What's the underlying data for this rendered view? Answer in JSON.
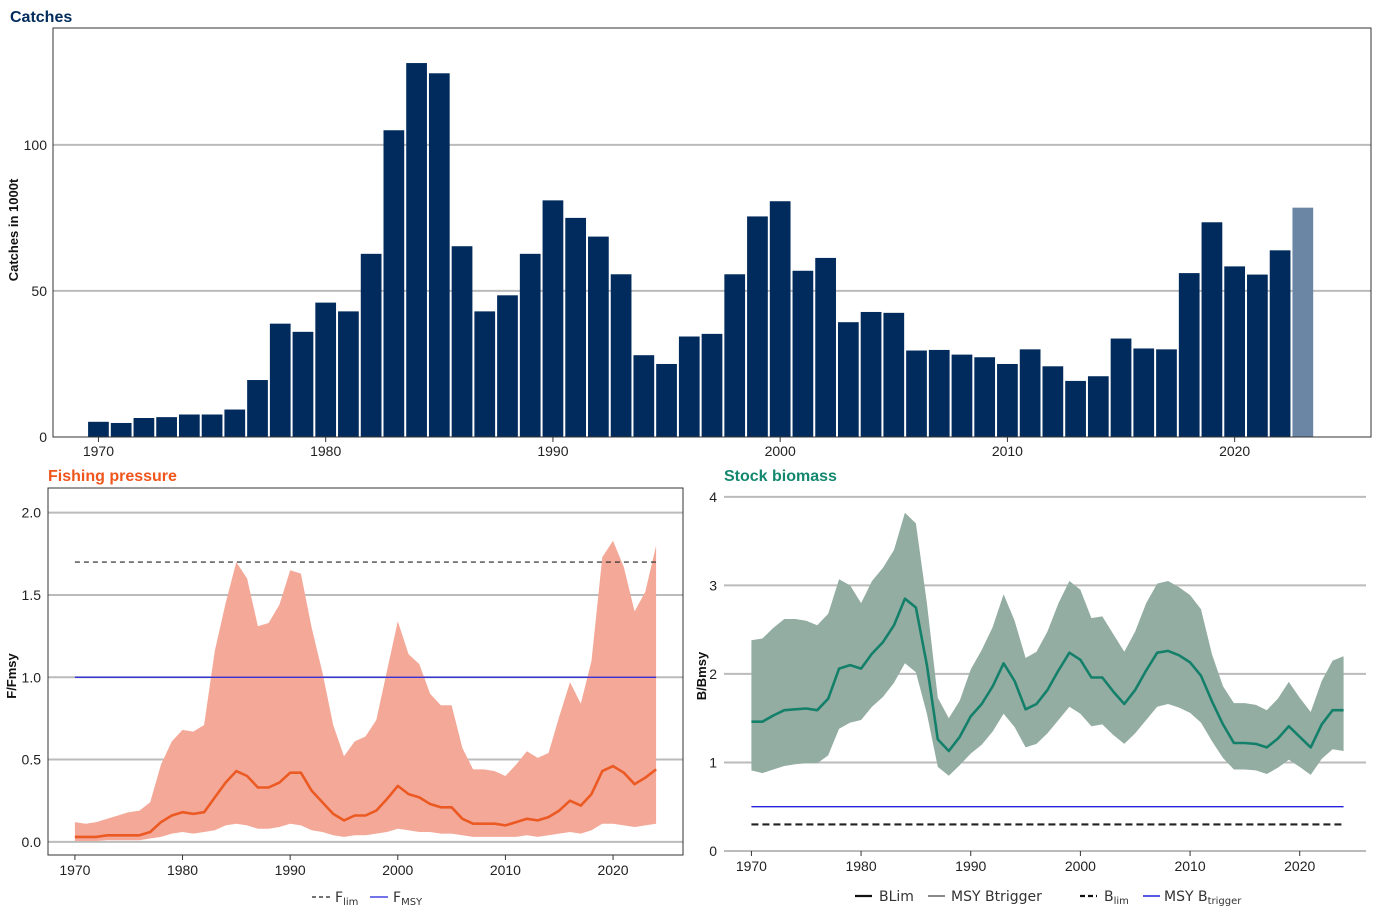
{
  "colors": {
    "catch_bar": "#002b5c",
    "catch_bar_projected": "#6a86a4",
    "fishing_title": "#f0561c",
    "fishing_band": "#f4a898",
    "fishing_line": "#ec5a24",
    "biomass_title": "#14876f",
    "biomass_band": "#93ada3",
    "biomass_line": "#14806a",
    "msy_line": "#2222dd",
    "ref_dashed": "#222222",
    "grid": "#bbbbbb"
  },
  "chart_data": [
    {
      "type": "bar",
      "title": "Catches",
      "ylabel": "Catches in 1000t",
      "xlabel": "",
      "xlim": [
        1968,
        2026
      ],
      "ylim": [
        0,
        140
      ],
      "yticks": [
        "0",
        "50",
        "100"
      ],
      "xticks": [
        "1970",
        "1980",
        "1990",
        "2000",
        "2010",
        "2020"
      ],
      "grid": true,
      "x": [
        1970,
        1971,
        1972,
        1973,
        1974,
        1975,
        1976,
        1977,
        1978,
        1979,
        1980,
        1981,
        1982,
        1983,
        1984,
        1985,
        1986,
        1987,
        1988,
        1989,
        1990,
        1991,
        1992,
        1993,
        1994,
        1995,
        1996,
        1997,
        1998,
        1999,
        2000,
        2001,
        2002,
        2003,
        2004,
        2005,
        2006,
        2007,
        2008,
        2009,
        2010,
        2011,
        2012,
        2013,
        2014,
        2015,
        2016,
        2017,
        2018,
        2019,
        2020,
        2021,
        2022,
        2023
      ],
      "values": [
        5.2,
        4.8,
        6.5,
        6.8,
        7.7,
        7.7,
        9.4,
        19.5,
        38.8,
        36.0,
        46.0,
        43.0,
        62.7,
        105.0,
        128.0,
        124.5,
        65.3,
        43.0,
        48.5,
        62.7,
        81.0,
        75.0,
        68.6,
        55.7,
        28.0,
        25.0,
        34.4,
        35.3,
        55.7,
        75.5,
        80.7,
        56.9,
        61.3,
        39.3,
        42.8,
        42.5,
        29.6,
        29.8,
        28.2,
        27.3,
        25.0,
        30.0,
        24.2,
        19.2,
        20.8,
        33.7,
        30.3,
        30.0,
        56.1,
        73.5,
        58.4,
        55.6,
        63.9,
        78.5
      ],
      "projected": [
        false,
        false,
        false,
        false,
        false,
        false,
        false,
        false,
        false,
        false,
        false,
        false,
        false,
        false,
        false,
        false,
        false,
        false,
        false,
        false,
        false,
        false,
        false,
        false,
        false,
        false,
        false,
        false,
        false,
        false,
        false,
        false,
        false,
        false,
        false,
        false,
        false,
        false,
        false,
        false,
        false,
        false,
        false,
        false,
        false,
        false,
        false,
        false,
        false,
        false,
        false,
        false,
        false,
        true
      ]
    },
    {
      "type": "line",
      "title": "Fishing pressure",
      "ylabel": "F/Fmsy",
      "xlabel": "",
      "xlim": [
        1967.5,
        2026.5
      ],
      "ylim": [
        -0.08,
        2.15
      ],
      "yticks": [
        "0.0",
        "0.5",
        "1.0",
        "1.5",
        "2.0"
      ],
      "xticks": [
        "1970",
        "1980",
        "1990",
        "2000",
        "2010",
        "2020"
      ],
      "grid": true,
      "x": [
        1970,
        1971,
        1972,
        1973,
        1974,
        1975,
        1976,
        1977,
        1978,
        1979,
        1980,
        1981,
        1982,
        1983,
        1984,
        1985,
        1986,
        1987,
        1988,
        1989,
        1990,
        1991,
        1992,
        1993,
        1994,
        1995,
        1996,
        1997,
        1998,
        1999,
        2000,
        2001,
        2002,
        2003,
        2004,
        2005,
        2006,
        2007,
        2008,
        2009,
        2010,
        2011,
        2012,
        2013,
        2014,
        2015,
        2016,
        2017,
        2018,
        2019,
        2020,
        2021,
        2022,
        2023,
        2024
      ],
      "series": [
        {
          "name": "F/Fmsy",
          "values": [
            0.03,
            0.03,
            0.03,
            0.04,
            0.04,
            0.04,
            0.04,
            0.06,
            0.12,
            0.16,
            0.18,
            0.17,
            0.18,
            0.27,
            0.36,
            0.43,
            0.4,
            0.33,
            0.33,
            0.36,
            0.42,
            0.42,
            0.31,
            0.24,
            0.17,
            0.13,
            0.16,
            0.16,
            0.19,
            0.26,
            0.34,
            0.29,
            0.27,
            0.23,
            0.21,
            0.21,
            0.14,
            0.11,
            0.11,
            0.11,
            0.1,
            0.12,
            0.14,
            0.13,
            0.15,
            0.19,
            0.25,
            0.22,
            0.29,
            0.43,
            0.46,
            0.42,
            0.35,
            0.39,
            0.44
          ]
        },
        {
          "name": "upper",
          "values": [
            0.12,
            0.11,
            0.12,
            0.14,
            0.16,
            0.18,
            0.19,
            0.24,
            0.47,
            0.61,
            0.68,
            0.67,
            0.71,
            1.16,
            1.45,
            1.7,
            1.6,
            1.31,
            1.33,
            1.44,
            1.65,
            1.63,
            1.3,
            1.03,
            0.71,
            0.52,
            0.61,
            0.64,
            0.74,
            1.04,
            1.34,
            1.14,
            1.08,
            0.9,
            0.83,
            0.83,
            0.57,
            0.44,
            0.44,
            0.43,
            0.4,
            0.47,
            0.55,
            0.51,
            0.54,
            0.76,
            0.97,
            0.84,
            1.1,
            1.73,
            1.83,
            1.67,
            1.4,
            1.52,
            1.8
          ]
        },
        {
          "name": "lower",
          "values": [
            0.005,
            0.005,
            0.005,
            0.01,
            0.01,
            0.01,
            0.01,
            0.02,
            0.03,
            0.05,
            0.06,
            0.05,
            0.06,
            0.07,
            0.1,
            0.11,
            0.1,
            0.08,
            0.08,
            0.09,
            0.11,
            0.1,
            0.07,
            0.06,
            0.04,
            0.03,
            0.04,
            0.04,
            0.05,
            0.06,
            0.08,
            0.07,
            0.06,
            0.06,
            0.05,
            0.05,
            0.04,
            0.03,
            0.03,
            0.03,
            0.03,
            0.03,
            0.04,
            0.03,
            0.04,
            0.05,
            0.06,
            0.05,
            0.07,
            0.11,
            0.11,
            0.1,
            0.09,
            0.1,
            0.11
          ]
        }
      ],
      "reference_lines": [
        {
          "name": "Flim",
          "value": 1.7,
          "style": "dashed"
        },
        {
          "name": "FMSY",
          "value": 1.0,
          "style": "solid"
        }
      ],
      "legend": {
        "placement": "bottom",
        "entries": [
          {
            "main": "F",
            "sub": "lim"
          },
          {
            "main": "F",
            "sub": "MSY"
          }
        ]
      }
    },
    {
      "type": "line",
      "title": "Stock biomass",
      "ylabel": "B/Bmsy",
      "xlabel": "",
      "xlim": [
        1967.5,
        2026.5
      ],
      "ylim": [
        0,
        4.1
      ],
      "yticks": [
        "0",
        "1",
        "2",
        "3",
        "4"
      ],
      "xticks": [
        "1970",
        "1980",
        "1990",
        "2000",
        "2010",
        "2020"
      ],
      "grid": true,
      "x": [
        1970,
        1971,
        1972,
        1973,
        1974,
        1975,
        1976,
        1977,
        1978,
        1979,
        1980,
        1981,
        1982,
        1983,
        1984,
        1985,
        1986,
        1987,
        1988,
        1989,
        1990,
        1991,
        1992,
        1993,
        1994,
        1995,
        1996,
        1997,
        1998,
        1999,
        2000,
        2001,
        2002,
        2003,
        2004,
        2005,
        2006,
        2007,
        2008,
        2009,
        2010,
        2011,
        2012,
        2013,
        2014,
        2015,
        2016,
        2017,
        2018,
        2019,
        2020,
        2021,
        2022,
        2023,
        2024
      ],
      "series": [
        {
          "name": "B/Bmsy",
          "values": [
            1.46,
            1.46,
            1.53,
            1.59,
            1.6,
            1.61,
            1.59,
            1.72,
            2.06,
            2.1,
            2.06,
            2.23,
            2.36,
            2.55,
            2.85,
            2.75,
            2.1,
            1.26,
            1.13,
            1.29,
            1.52,
            1.66,
            1.86,
            2.12,
            1.92,
            1.6,
            1.66,
            1.82,
            2.04,
            2.24,
            2.16,
            1.96,
            1.96,
            1.8,
            1.66,
            1.82,
            2.04,
            2.24,
            2.26,
            2.21,
            2.13,
            1.98,
            1.69,
            1.43,
            1.22,
            1.22,
            1.21,
            1.17,
            1.27,
            1.41,
            1.29,
            1.17,
            1.43,
            1.59,
            1.59
          ]
        },
        {
          "name": "upper",
          "values": [
            2.38,
            2.4,
            2.52,
            2.62,
            2.62,
            2.6,
            2.55,
            2.68,
            3.07,
            3.0,
            2.8,
            3.05,
            3.2,
            3.4,
            3.82,
            3.7,
            2.8,
            1.73,
            1.5,
            1.7,
            2.05,
            2.27,
            2.53,
            2.9,
            2.6,
            2.18,
            2.25,
            2.48,
            2.8,
            3.05,
            2.95,
            2.63,
            2.65,
            2.45,
            2.25,
            2.48,
            2.8,
            3.02,
            3.05,
            2.98,
            2.89,
            2.73,
            2.22,
            1.86,
            1.67,
            1.67,
            1.65,
            1.59,
            1.72,
            1.91,
            1.73,
            1.57,
            1.92,
            2.15,
            2.2
          ]
        },
        {
          "name": "lower",
          "values": [
            0.91,
            0.88,
            0.92,
            0.96,
            0.98,
            0.99,
            0.99,
            1.08,
            1.38,
            1.45,
            1.48,
            1.63,
            1.74,
            1.9,
            2.12,
            2.02,
            1.55,
            0.95,
            0.85,
            0.97,
            1.1,
            1.2,
            1.35,
            1.55,
            1.4,
            1.17,
            1.21,
            1.33,
            1.48,
            1.63,
            1.55,
            1.41,
            1.43,
            1.31,
            1.21,
            1.33,
            1.48,
            1.63,
            1.66,
            1.62,
            1.56,
            1.45,
            1.24,
            1.05,
            0.92,
            0.92,
            0.91,
            0.87,
            0.94,
            1.03,
            0.95,
            0.86,
            1.04,
            1.15,
            1.13
          ]
        }
      ],
      "reference_lines": [
        {
          "name": "MSY Btrigger",
          "value": 0.5,
          "style": "solid"
        },
        {
          "name": "Blim",
          "value": 0.3,
          "style": "dashed"
        }
      ],
      "legend": {
        "placement": "bottom",
        "entries": [
          {
            "main": "BLim"
          },
          {
            "main": "MSY Btrigger"
          },
          {
            "main": "B",
            "sub": "lim"
          },
          {
            "main": "MSY B",
            "sub": "trigger"
          }
        ]
      }
    }
  ]
}
